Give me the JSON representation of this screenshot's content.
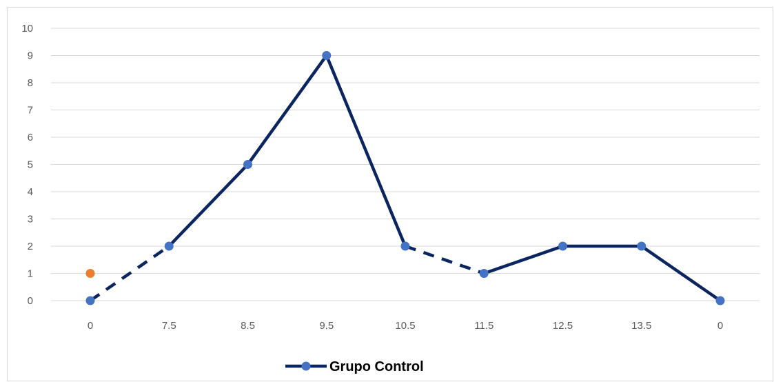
{
  "chart_data": {
    "type": "line",
    "title": "",
    "xlabel": "",
    "ylabel": "",
    "categories": [
      "0",
      "7.5",
      "8.5",
      "9.5",
      "10.5",
      "11.5",
      "12.5",
      "13.5",
      "0"
    ],
    "y_ticks": [
      "0",
      "1",
      "2",
      "3",
      "4",
      "5",
      "6",
      "7",
      "8",
      "9",
      "10"
    ],
    "ylim": [
      0,
      10
    ],
    "grid": true,
    "legend_position": "bottom",
    "series": [
      {
        "name": "Grupo Control",
        "values": [
          0,
          2,
          5,
          9,
          2,
          1,
          2,
          2,
          0
        ],
        "dashed_segments": [
          [
            0,
            1
          ],
          [
            4,
            5
          ]
        ],
        "line_color": "#0b2560",
        "marker_color": "#4472c4"
      }
    ],
    "extra_point": {
      "category_index": 0,
      "value": 1,
      "color": "#ed7d31"
    },
    "gridline_color": "#d9d9d9"
  }
}
